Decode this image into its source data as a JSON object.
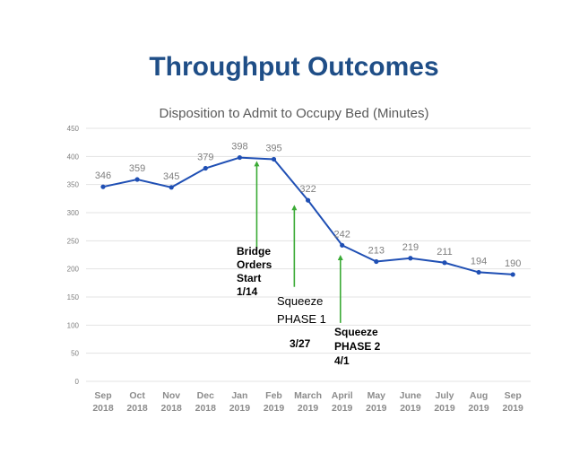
{
  "title": "Throughput Outcomes",
  "chart_data": {
    "type": "line",
    "title": "Disposition to Admit to Occupy Bed (Minutes)",
    "xlabel": "",
    "ylabel": "",
    "ylim": [
      0,
      450
    ],
    "yticks": [
      0,
      50,
      100,
      150,
      200,
      250,
      300,
      350,
      400,
      450
    ],
    "grid": true,
    "categories": [
      [
        "Sep",
        "2018"
      ],
      [
        "Oct",
        "2018"
      ],
      [
        "Nov",
        "2018"
      ],
      [
        "Dec",
        "2018"
      ],
      [
        "Jan",
        "2019"
      ],
      [
        "Feb",
        "2019"
      ],
      [
        "March",
        "2019"
      ],
      [
        "April",
        "2019"
      ],
      [
        "May",
        "2019"
      ],
      [
        "June",
        "2019"
      ],
      [
        "July",
        "2019"
      ],
      [
        "Aug",
        "2019"
      ],
      [
        "Sep",
        "2019"
      ]
    ],
    "series": [
      {
        "name": "Minutes",
        "color": "#1f4fb4",
        "values": [
          346,
          359,
          345,
          379,
          398,
          395,
          322,
          242,
          213,
          219,
          211,
          194,
          190
        ]
      }
    ],
    "annotations": [
      {
        "lines": [
          "Bridge",
          "Orders",
          "Start",
          "1/14"
        ],
        "arrow_x": 4.5,
        "arrow_from": 235,
        "arrow_to": 392
      },
      {
        "lines": [
          "Squeeze",
          "PHASE 1"
        ],
        "date": "3/27",
        "arrow_x": 5.6,
        "arrow_from": 168,
        "arrow_to": 314
      },
      {
        "lines": [
          "Squeeze",
          "PHASE 2",
          "4/1"
        ],
        "arrow_x": 6.95,
        "arrow_from": 104,
        "arrow_to": 225
      }
    ],
    "arrow_color": "#3aaa35"
  }
}
